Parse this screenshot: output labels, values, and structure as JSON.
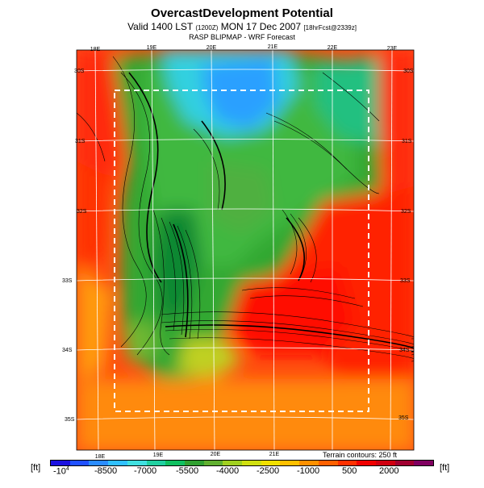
{
  "header": {
    "title": "OvercastDevelopment Potential",
    "valid_prefix": "Valid 1400 LST",
    "valid_small1": "(1200Z)",
    "valid_main": "MON 17 Dec 2007",
    "valid_small2": "[18hrFcst@2339z]",
    "subtitle": "RASP BLIPMAP - WRF Forecast"
  },
  "map": {
    "lon_labels_top": [
      "18E",
      "19E",
      "20E",
      "21E",
      "22E",
      "23E"
    ],
    "lon_labels_bottom": [
      "18E",
      "19E",
      "20E",
      "21E"
    ],
    "lat_labels_left": [
      "30S",
      "31S",
      "32S",
      "33S",
      "34S",
      "35S"
    ],
    "lat_labels_right": [
      "30S",
      "31S",
      "32S",
      "33S",
      "34S",
      "35S"
    ],
    "terrain_note": "Terrain contours: 250 ft"
  },
  "colorbar": {
    "unit_left": "[ft]",
    "unit_right": "[ft]",
    "labels": [
      "-10^4",
      "-8500",
      "-7000",
      "-5500",
      "-4000",
      "-2500",
      "-1000",
      "500",
      "2000"
    ],
    "colors": [
      "#1a10e0",
      "#2050ff",
      "#2a8cff",
      "#30c0ff",
      "#40e0e0",
      "#20d0a0",
      "#10c060",
      "#30a030",
      "#60b030",
      "#a0d020",
      "#d0e010",
      "#f0e000",
      "#ffc000",
      "#ff9000",
      "#ff6000",
      "#ff3000",
      "#f00000",
      "#d00010",
      "#a00030",
      "#800060"
    ]
  }
}
